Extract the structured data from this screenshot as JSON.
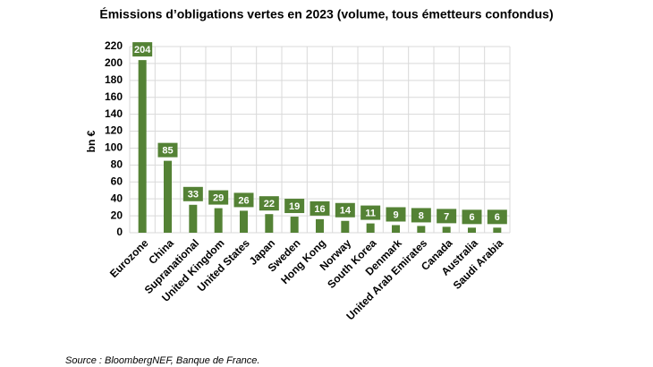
{
  "chart_data": {
    "type": "bar",
    "title": "Émissions d’obligations vertes en 2023 (volume, tous émetteurs confondus)",
    "y_label": "bn €",
    "source": "Source : BloombergNEF, Banque de France.",
    "categories": [
      "Eurozone",
      "China",
      "Supranational",
      "United Kingdom",
      "United States",
      "Japan",
      "Sweden",
      "Hong Kong",
      "Norway",
      "South Korea",
      "Denmark",
      "United Arab Emirates",
      "Canada",
      "Australia",
      "Saudi Arabia"
    ],
    "values": [
      204,
      85,
      33,
      29,
      26,
      22,
      19,
      16,
      14,
      11,
      9,
      8,
      7,
      6,
      6
    ],
    "color": "#548235",
    "ylim": [
      0,
      220
    ],
    "yticks": [
      0,
      20,
      40,
      60,
      80,
      100,
      120,
      140,
      160,
      180,
      200,
      220
    ],
    "grid": true
  }
}
